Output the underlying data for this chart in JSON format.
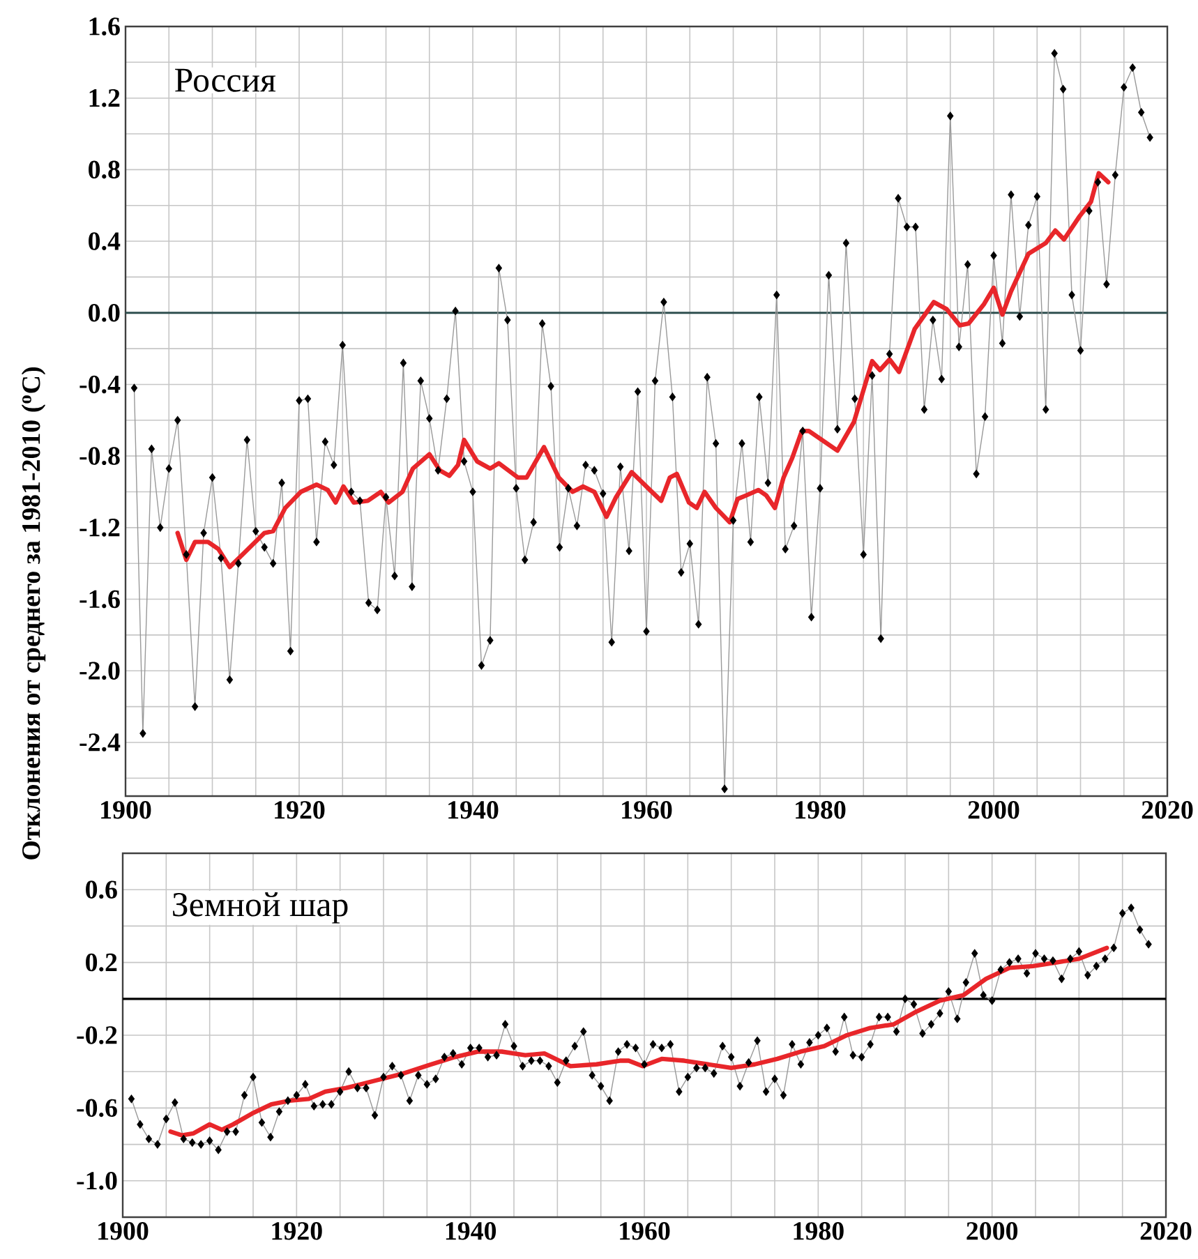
{
  "chart_data": [
    {
      "type": "line",
      "title": "Россия",
      "ylabel": "Отклонения от среднего за 1981-2010 ($^{o}$C)",
      "marker": "diamond",
      "line_style": "solid",
      "grid": true,
      "xlim": [
        1900,
        2020
      ],
      "ylim": [
        -2.7,
        1.6
      ],
      "xticks": [
        1900,
        {
          "value": 1905,
          "label": null
        },
        {
          "value": 1910,
          "label": null
        },
        {
          "value": 1915,
          "label": null
        },
        1920,
        {
          "value": 1925,
          "label": null
        },
        {
          "value": 1930,
          "label": null
        },
        {
          "value": 1935,
          "label": null
        },
        1940,
        {
          "value": 1945,
          "label": null
        },
        {
          "value": 1950,
          "label": null
        },
        {
          "value": 1955,
          "label": null
        },
        1960,
        {
          "value": 1965,
          "label": null
        },
        {
          "value": 1970,
          "label": null
        },
        {
          "value": 1975,
          "label": null
        },
        1980,
        {
          "value": 1985,
          "label": null
        },
        {
          "value": 1990,
          "label": null
        },
        {
          "value": 1995,
          "label": null
        },
        2000,
        {
          "value": 2005,
          "label": null
        },
        {
          "value": 2010,
          "label": null
        },
        {
          "value": 2015,
          "label": null
        },
        2020
      ],
      "yticks": [
        {
          "value": -2.6,
          "label": null
        },
        -2.4,
        {
          "value": -2.2,
          "label": null
        },
        {
          "value": -2.0,
          "label": "-2.0"
        },
        {
          "value": -1.8,
          "label": null
        },
        -1.6,
        {
          "value": -1.4,
          "label": null
        },
        -1.2,
        {
          "value": -1.0,
          "label": null
        },
        -0.8,
        {
          "value": -0.6,
          "label": null
        },
        -0.4,
        {
          "value": -0.2,
          "label": null
        },
        {
          "value": 0.0,
          "label": "0.0"
        },
        {
          "value": 0.2,
          "label": null
        },
        0.4,
        {
          "value": 0.6,
          "label": null
        },
        0.8,
        {
          "value": 1.0,
          "label": null
        },
        1.2,
        {
          "value": 1.4,
          "label": null
        },
        1.6
      ],
      "ref_lines": [
        {
          "axis": "y",
          "value": 0,
          "color": "#2f4f4f"
        }
      ],
      "x": [
        1901,
        1902,
        1903,
        1904,
        1905,
        1906,
        1907,
        1908,
        1909,
        1910,
        1911,
        1912,
        1913,
        1914,
        1915,
        1916,
        1917,
        1918,
        1919,
        1920,
        1921,
        1922,
        1923,
        1924,
        1925,
        1926,
        1927,
        1928,
        1929,
        1930,
        1931,
        1932,
        1933,
        1934,
        1935,
        1936,
        1937,
        1938,
        1939,
        1940,
        1941,
        1942,
        1943,
        1944,
        1945,
        1946,
        1947,
        1948,
        1949,
        1950,
        1951,
        1952,
        1953,
        1954,
        1955,
        1956,
        1957,
        1958,
        1959,
        1960,
        1961,
        1962,
        1963,
        1964,
        1965,
        1966,
        1967,
        1968,
        1969,
        1970,
        1971,
        1972,
        1973,
        1974,
        1975,
        1976,
        1977,
        1978,
        1979,
        1980,
        1981,
        1982,
        1983,
        1984,
        1985,
        1986,
        1987,
        1988,
        1989,
        1990,
        1991,
        1992,
        1993,
        1994,
        1995,
        1996,
        1997,
        1998,
        1999,
        2000,
        2001,
        2002,
        2003,
        2004,
        2005,
        2006,
        2007,
        2008,
        2009,
        2010,
        2011,
        2012,
        2013,
        2014,
        2015,
        2016,
        2017,
        2018
      ],
      "series": [
        {
          "color": "#000000",
          "values": [
            -0.42,
            -2.35,
            -0.76,
            -1.2,
            -0.87,
            -0.6,
            -1.35,
            -2.2,
            -1.23,
            -0.92,
            -1.37,
            -2.05,
            -1.4,
            -0.71,
            -1.22,
            -1.31,
            -1.4,
            -0.95,
            -1.89,
            -0.49,
            -0.48,
            -1.28,
            -0.72,
            -0.85,
            -0.18,
            -1.0,
            -1.05,
            -1.62,
            -1.66,
            -1.03,
            -1.47,
            -0.28,
            -1.53,
            -0.38,
            -0.59,
            -0.88,
            -0.48,
            0.01,
            -0.83,
            -1.0,
            -1.97,
            -1.83,
            0.25,
            -0.04,
            -0.98,
            -1.38,
            -1.17,
            -0.06,
            -0.41,
            -1.31,
            -0.98,
            -1.19,
            -0.85,
            -0.88,
            -1.01,
            -1.84,
            -0.86,
            -1.33,
            -0.44,
            -1.78,
            -0.38,
            0.06,
            -0.47,
            -1.45,
            -1.29,
            -1.74,
            -0.36,
            -0.73,
            -2.66,
            -1.16,
            -0.73,
            -1.28,
            -0.47,
            -0.95,
            0.1,
            -1.32,
            -1.19,
            -0.66,
            -1.7,
            -0.98,
            0.21,
            -0.65,
            0.39,
            -0.48,
            -1.35,
            -0.35,
            -1.82,
            -0.23,
            0.64,
            0.48,
            0.48,
            -0.54,
            -0.04,
            -0.37,
            1.1,
            -0.19,
            0.27,
            -0.9,
            -0.58,
            0.32,
            -0.17,
            0.66,
            -0.02,
            0.49,
            0.65,
            -0.54,
            1.45,
            1.25,
            0.1,
            -0.21,
            0.57,
            0.73,
            0.16,
            0.77,
            1.26,
            1.37,
            1.12,
            0.98
          ]
        },
        {
          "type": "line",
          "marker": "none",
          "color": "#e8262a",
          "x": [
            1906,
            1907,
            1908,
            1909.5,
            1910.7,
            1912,
            1913.7,
            1916,
            1917,
            1918.4,
            1920.2,
            1922,
            1923.3,
            1924.2,
            1925.1,
            1926.3,
            1927.9,
            1929.4,
            1930.3,
            1931.9,
            1933.1,
            1935,
            1936.2,
            1937.3,
            1938.3,
            1939,
            1940.5,
            1942,
            1943,
            1945.2,
            1946.2,
            1948.2,
            1949.9,
            1951.5,
            1952.7,
            1954,
            1955.4,
            1956.5,
            1958.3,
            1960.2,
            1961.7,
            1962.7,
            1963.5,
            1964.9,
            1965.8,
            1966.7,
            1968,
            1969.6,
            1970.5,
            1971.5,
            1972.9,
            1973.8,
            1974.8,
            1975.8,
            1976.8,
            1977.9,
            1978.7,
            1982,
            1983.9,
            1986,
            1986.9,
            1988,
            1989.1,
            1990.9,
            1993.1,
            1994.6,
            1996.1,
            1997.1,
            1998.9,
            2000,
            2001,
            2002,
            2004,
            2006,
            2007.1,
            2008.1,
            2009.9,
            2011.2,
            2012.1,
            2013.2
          ],
          "values": [
            -1.23,
            -1.38,
            -1.28,
            -1.28,
            -1.32,
            -1.42,
            -1.34,
            -1.23,
            -1.22,
            -1.09,
            -1.0,
            -0.96,
            -0.99,
            -1.06,
            -0.97,
            -1.06,
            -1.05,
            -1.0,
            -1.06,
            -1.0,
            -0.87,
            -0.79,
            -0.88,
            -0.91,
            -0.85,
            -0.71,
            -0.83,
            -0.87,
            -0.84,
            -0.92,
            -0.92,
            -0.75,
            -0.92,
            -1.0,
            -0.97,
            -1.0,
            -1.14,
            -1.03,
            -0.89,
            -0.98,
            -1.05,
            -0.92,
            -0.9,
            -1.06,
            -1.09,
            -1.0,
            -1.09,
            -1.17,
            -1.04,
            -1.02,
            -0.99,
            -1.02,
            -1.09,
            -0.92,
            -0.81,
            -0.66,
            -0.66,
            -0.77,
            -0.61,
            -0.27,
            -0.32,
            -0.26,
            -0.33,
            -0.09,
            0.06,
            0.02,
            -0.07,
            -0.06,
            0.05,
            0.14,
            -0.01,
            0.12,
            0.33,
            0.39,
            0.46,
            0.41,
            0.54,
            0.62,
            0.78,
            0.73
          ]
        }
      ]
    },
    {
      "type": "line",
      "title": "Земной шар",
      "marker": "diamond",
      "line_style": "solid",
      "grid": true,
      "xlim": [
        1900,
        2020
      ],
      "ylim": [
        -1.2,
        0.8
      ],
      "xticks": [
        1900,
        {
          "value": 1905,
          "label": null
        },
        {
          "value": 1910,
          "label": null
        },
        {
          "value": 1915,
          "label": null
        },
        1920,
        {
          "value": 1925,
          "label": null
        },
        {
          "value": 1930,
          "label": null
        },
        {
          "value": 1935,
          "label": null
        },
        1940,
        {
          "value": 1945,
          "label": null
        },
        {
          "value": 1950,
          "label": null
        },
        {
          "value": 1955,
          "label": null
        },
        1960,
        {
          "value": 1965,
          "label": null
        },
        {
          "value": 1970,
          "label": null
        },
        {
          "value": 1975,
          "label": null
        },
        1980,
        {
          "value": 1985,
          "label": null
        },
        {
          "value": 1990,
          "label": null
        },
        {
          "value": 1995,
          "label": null
        },
        2000,
        {
          "value": 2005,
          "label": null
        },
        {
          "value": 2010,
          "label": null
        },
        {
          "value": 2015,
          "label": null
        },
        2020
      ],
      "yticks": [
        {
          "value": -1.2,
          "label": null
        },
        {
          "value": -1.0,
          "label": "-1.0"
        },
        {
          "value": -0.8,
          "label": null
        },
        -0.6,
        {
          "value": -0.4,
          "label": null
        },
        -0.2,
        {
          "value": 0.0,
          "label": null
        },
        0.2,
        {
          "value": 0.4,
          "label": null
        },
        0.6,
        {
          "value": 0.8,
          "label": null
        }
      ],
      "ref_lines": [
        {
          "axis": "y",
          "value": 0,
          "color": "#000000"
        }
      ],
      "x": [
        1901,
        1902,
        1903,
        1904,
        1905,
        1906,
        1907,
        1908,
        1909,
        1910,
        1911,
        1912,
        1913,
        1914,
        1915,
        1916,
        1917,
        1918,
        1919,
        1920,
        1921,
        1922,
        1923,
        1924,
        1925,
        1926,
        1927,
        1928,
        1929,
        1930,
        1931,
        1932,
        1933,
        1934,
        1935,
        1936,
        1937,
        1938,
        1939,
        1940,
        1941,
        1942,
        1943,
        1944,
        1945,
        1946,
        1947,
        1948,
        1949,
        1950,
        1951,
        1952,
        1953,
        1954,
        1955,
        1956,
        1957,
        1958,
        1959,
        1960,
        1961,
        1962,
        1963,
        1964,
        1965,
        1966,
        1967,
        1968,
        1969,
        1970,
        1971,
        1972,
        1973,
        1974,
        1975,
        1976,
        1977,
        1978,
        1979,
        1980,
        1981,
        1982,
        1983,
        1984,
        1985,
        1986,
        1987,
        1988,
        1989,
        1990,
        1991,
        1992,
        1993,
        1994,
        1995,
        1996,
        1997,
        1998,
        1999,
        2000,
        2001,
        2002,
        2003,
        2004,
        2005,
        2006,
        2007,
        2008,
        2009,
        2010,
        2011,
        2012,
        2013,
        2014,
        2015,
        2016,
        2017,
        2018
      ],
      "series": [
        {
          "color": "#000000",
          "values": [
            -0.55,
            -0.69,
            -0.77,
            -0.8,
            -0.66,
            -0.57,
            -0.77,
            -0.79,
            -0.8,
            -0.78,
            -0.83,
            -0.73,
            -0.73,
            -0.53,
            -0.43,
            -0.68,
            -0.76,
            -0.62,
            -0.56,
            -0.53,
            -0.47,
            -0.59,
            -0.58,
            -0.58,
            -0.51,
            -0.4,
            -0.49,
            -0.49,
            -0.64,
            -0.43,
            -0.37,
            -0.42,
            -0.56,
            -0.42,
            -0.47,
            -0.44,
            -0.32,
            -0.3,
            -0.36,
            -0.27,
            -0.27,
            -0.32,
            -0.31,
            -0.14,
            -0.26,
            -0.37,
            -0.34,
            -0.34,
            -0.37,
            -0.46,
            -0.34,
            -0.26,
            -0.18,
            -0.42,
            -0.48,
            -0.56,
            -0.29,
            -0.25,
            -0.27,
            -0.36,
            -0.25,
            -0.27,
            -0.25,
            -0.51,
            -0.43,
            -0.38,
            -0.38,
            -0.41,
            -0.26,
            -0.32,
            -0.48,
            -0.35,
            -0.23,
            -0.51,
            -0.44,
            -0.53,
            -0.25,
            -0.36,
            -0.24,
            -0.2,
            -0.16,
            -0.29,
            -0.1,
            -0.31,
            -0.32,
            -0.25,
            -0.1,
            -0.1,
            -0.18,
            0.0,
            -0.03,
            -0.19,
            -0.14,
            -0.08,
            0.04,
            -0.11,
            0.09,
            0.25,
            0.02,
            -0.01,
            0.16,
            0.2,
            0.22,
            0.14,
            0.25,
            0.22,
            0.21,
            0.11,
            0.22,
            0.26,
            0.13,
            0.18,
            0.22,
            0.28,
            0.47,
            0.5,
            0.38,
            0.3
          ]
        },
        {
          "type": "line",
          "marker": "none",
          "color": "#e8262a",
          "x": [
            1905.5,
            1906.8,
            1908.1,
            1910,
            1911.4,
            1912.7,
            1914.9,
            1917.1,
            1919.2,
            1921.4,
            1923.3,
            1925.7,
            1929,
            1932.3,
            1935.5,
            1938.2,
            1940.9,
            1943.6,
            1946.3,
            1948.5,
            1951.5,
            1954.5,
            1957.2,
            1958.2,
            1959.8,
            1962,
            1964.6,
            1967.3,
            1970,
            1972.7,
            1975.3,
            1978,
            1980.7,
            1983.3,
            1986,
            1988.7,
            1991.3,
            1994,
            1996.7,
            1999.3,
            2002,
            2004.7,
            2007.4,
            2010,
            2013.2
          ],
          "values": [
            -0.73,
            -0.75,
            -0.74,
            -0.69,
            -0.72,
            -0.69,
            -0.63,
            -0.58,
            -0.56,
            -0.55,
            -0.51,
            -0.49,
            -0.45,
            -0.41,
            -0.36,
            -0.32,
            -0.29,
            -0.29,
            -0.31,
            -0.3,
            -0.37,
            -0.36,
            -0.34,
            -0.34,
            -0.37,
            -0.33,
            -0.34,
            -0.36,
            -0.38,
            -0.36,
            -0.33,
            -0.29,
            -0.26,
            -0.2,
            -0.16,
            -0.14,
            -0.07,
            -0.01,
            0.02,
            0.11,
            0.17,
            0.18,
            0.2,
            0.22,
            0.28
          ]
        }
      ]
    }
  ]
}
